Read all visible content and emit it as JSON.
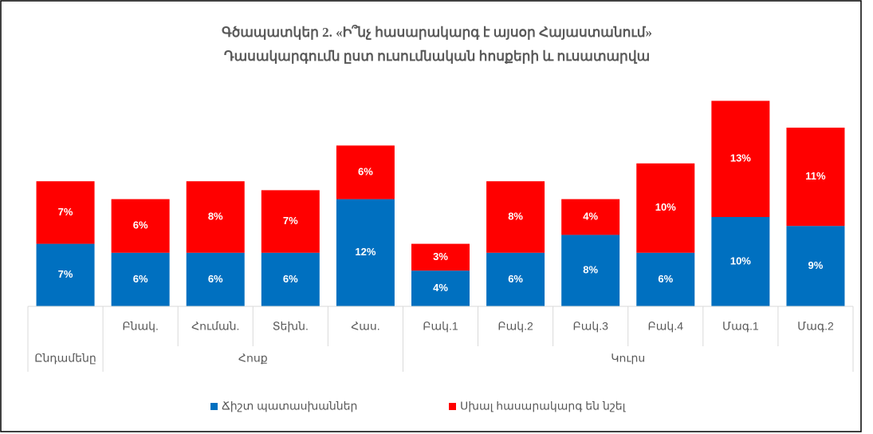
{
  "chart_data": {
    "type": "stacked-bar",
    "title": "Գծապատկեր 2. «Ի՞նչ հասարակարգ է այսօր Հայաստանում»",
    "subtitle": "Դասակարգումն ըստ ուսումնական հոսքերի և ուսատարվա",
    "categories": [
      null,
      "Բնակ.",
      "Հուման.",
      "Տեխն.",
      "Հաս.",
      "Բակ.1",
      "Բակ.2",
      "Բակ.3",
      "Բակ.4",
      "Մագ.1",
      "Մագ.2"
    ],
    "groups": [
      {
        "name": "Ընդամենը",
        "span": 1
      },
      {
        "name": "Հոսք",
        "span": 4
      },
      {
        "name": "Կուրս",
        "span": 6
      }
    ],
    "series": [
      {
        "name": "Ճիշտ պատասխաններ",
        "color": "#0070c0",
        "values": [
          7,
          6,
          6,
          6,
          12,
          4,
          6,
          8,
          6,
          10,
          9
        ],
        "value_labels": [
          "7%",
          "6%",
          "6%",
          "6%",
          "12%",
          "4%",
          "6%",
          "8%",
          "6%",
          "10%",
          "9%"
        ]
      },
      {
        "name": "Սխալ հասարակարգ են նշել",
        "color": "#ff0000",
        "values": [
          7,
          6,
          8,
          7,
          6,
          3,
          8,
          4,
          10,
          13,
          11
        ],
        "value_labels": [
          "7%",
          "6%",
          "8%",
          "7%",
          "6%",
          "3%",
          "8%",
          "4%",
          "10%",
          "13%",
          "11%"
        ]
      }
    ],
    "legend": "bottom"
  }
}
